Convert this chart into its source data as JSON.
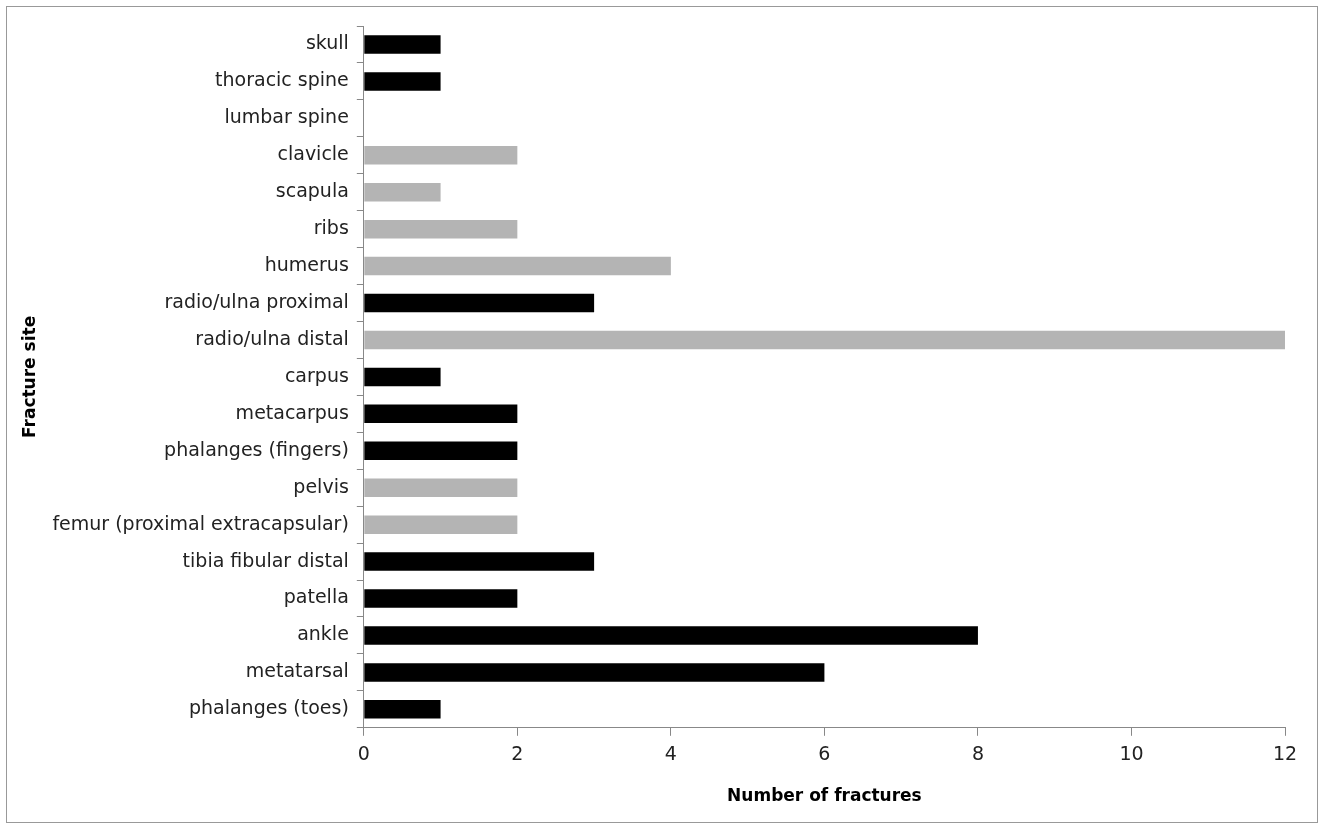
{
  "chart_data": {
    "type": "bar",
    "orientation": "horizontal",
    "xlabel": "Number of fractures",
    "ylabel": "Fracture site",
    "categories": [
      "skull",
      "thoracic spine",
      "lumbar spine",
      "clavicle",
      "scapula",
      "ribs",
      "humerus",
      "radio/ulna proximal",
      "radio/ulna distal",
      "carpus",
      "metacarpus",
      "phalanges (fingers)",
      "pelvis",
      "femur (proximal extracapsular)",
      "tibia fibular distal",
      "patella",
      "ankle",
      "metatarsal",
      "phalanges (toes)"
    ],
    "values": [
      1,
      1,
      0,
      2,
      1,
      2,
      4,
      3,
      12,
      1,
      2,
      2,
      2,
      2,
      3,
      2,
      8,
      6,
      1
    ],
    "colors": [
      "#000000",
      "#000000",
      "#000000",
      "#b4b4b4",
      "#b4b4b4",
      "#b4b4b4",
      "#b4b4b4",
      "#000000",
      "#b4b4b4",
      "#000000",
      "#000000",
      "#000000",
      "#b4b4b4",
      "#b4b4b4",
      "#000000",
      "#000000",
      "#000000",
      "#000000",
      "#000000"
    ],
    "xlim": [
      0,
      12
    ],
    "xticks": [
      0,
      2,
      4,
      6,
      8,
      10,
      12
    ],
    "grid": false,
    "legend": false
  }
}
